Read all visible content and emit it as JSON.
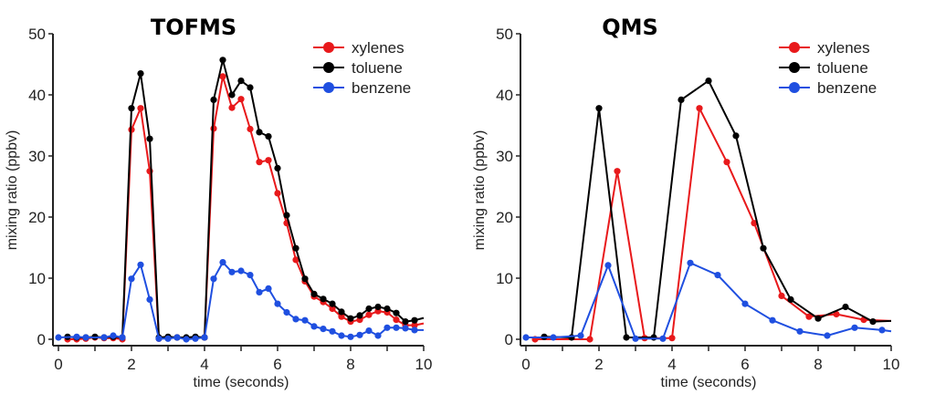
{
  "chart_data": [
    {
      "type": "line",
      "title": "TOFMS",
      "xlabel": "time (seconds)",
      "ylabel": "mixing ratio (ppbv)",
      "xlim": [
        0,
        10
      ],
      "ylim": [
        0,
        50
      ],
      "xticks": [
        0,
        2,
        4,
        6,
        8,
        10
      ],
      "yticks": [
        0,
        10,
        20,
        30,
        40,
        50
      ],
      "grid": false,
      "legend_position": "top-right",
      "series": [
        {
          "name": "xylenes",
          "color": "#e8191b",
          "x": [
            0.25,
            0.5,
            0.75,
            1.0,
            1.25,
            1.5,
            1.75,
            2.0,
            2.25,
            2.5,
            2.75,
            3.0,
            3.25,
            3.5,
            3.75,
            4.0,
            4.25,
            4.5,
            4.75,
            5.0,
            5.25,
            5.5,
            5.75,
            6.0,
            6.25,
            6.5,
            6.75,
            7.0,
            7.25,
            7.5,
            7.75,
            8.0,
            8.25,
            8.5,
            8.75,
            9.0,
            9.25,
            9.5,
            9.75,
            10.0
          ],
          "y": [
            0.0,
            0.0,
            0.1,
            0.3,
            0.2,
            0.2,
            0.0,
            34.3,
            37.8,
            27.5,
            0.1,
            0.2,
            0.3,
            0.1,
            0.2,
            0.3,
            34.5,
            43.0,
            37.9,
            39.3,
            34.4,
            29.0,
            29.3,
            23.9,
            19.0,
            13.0,
            9.5,
            7.0,
            6.1,
            5.0,
            3.7,
            2.9,
            3.2,
            4.0,
            4.6,
            4.4,
            3.2,
            2.3,
            2.3,
            2.6
          ]
        },
        {
          "name": "toluene",
          "color": "#000000",
          "x": [
            0.25,
            0.5,
            0.75,
            1.0,
            1.25,
            1.5,
            1.75,
            2.0,
            2.25,
            2.5,
            2.75,
            3.0,
            3.25,
            3.5,
            3.75,
            4.0,
            4.25,
            4.5,
            4.75,
            5.0,
            5.25,
            5.5,
            5.75,
            6.0,
            6.25,
            6.5,
            6.75,
            7.0,
            7.25,
            7.5,
            7.75,
            8.0,
            8.25,
            8.5,
            8.75,
            9.0,
            9.25,
            9.5,
            9.75,
            10.0
          ],
          "y": [
            0.4,
            0.3,
            0.3,
            0.4,
            0.3,
            0.4,
            0.3,
            37.8,
            43.5,
            32.8,
            0.3,
            0.4,
            0.3,
            0.3,
            0.4,
            0.3,
            39.2,
            45.7,
            40.0,
            42.3,
            41.2,
            33.9,
            33.2,
            28.0,
            20.3,
            14.9,
            9.9,
            7.4,
            6.6,
            5.8,
            4.5,
            3.4,
            3.9,
            5.0,
            5.3,
            5.0,
            4.3,
            2.9,
            3.1,
            3.5
          ]
        },
        {
          "name": "benzene",
          "color": "#1f4fe0",
          "x": [
            0.0,
            0.5,
            0.75,
            1.25,
            1.5,
            1.75,
            2.0,
            2.25,
            2.5,
            2.75,
            3.0,
            3.25,
            3.5,
            3.75,
            4.0,
            4.25,
            4.5,
            4.75,
            5.0,
            5.25,
            5.5,
            5.75,
            6.0,
            6.25,
            6.5,
            6.75,
            7.0,
            7.25,
            7.5,
            7.75,
            8.0,
            8.25,
            8.5,
            8.75,
            9.0,
            9.25,
            9.5,
            9.75,
            10.0
          ],
          "y": [
            0.3,
            0.4,
            0.3,
            0.3,
            0.6,
            0.3,
            9.9,
            12.2,
            6.5,
            0.1,
            0.1,
            0.3,
            0.0,
            0.1,
            0.3,
            9.9,
            12.6,
            11.0,
            11.2,
            10.5,
            7.7,
            8.3,
            5.8,
            4.4,
            3.3,
            3.1,
            2.1,
            1.7,
            1.3,
            0.6,
            0.4,
            0.7,
            1.4,
            0.6,
            1.9,
            1.9,
            1.8,
            1.5,
            1.5
          ]
        }
      ]
    },
    {
      "type": "line",
      "title": "QMS",
      "xlabel": "time (seconds)",
      "ylabel": "mixing ratio (ppbv)",
      "xlim": [
        0,
        10
      ],
      "ylim": [
        0,
        50
      ],
      "xticks": [
        0,
        2,
        4,
        6,
        8,
        10
      ],
      "yticks": [
        0,
        10,
        20,
        30,
        40,
        50
      ],
      "grid": false,
      "legend_position": "top-right",
      "series": [
        {
          "name": "xylenes",
          "color": "#e8191b",
          "x": [
            0.25,
            1.75,
            2.5,
            3.25,
            4.0,
            4.75,
            5.5,
            6.25,
            7.0,
            7.75,
            8.5,
            9.25,
            10.0
          ],
          "y": [
            0.0,
            0.0,
            27.5,
            0.2,
            0.2,
            37.8,
            29.0,
            19.0,
            7.1,
            3.7,
            4.1,
            3.2,
            3.0
          ]
        },
        {
          "name": "toluene",
          "color": "#000000",
          "x": [
            0.5,
            1.25,
            2.0,
            2.75,
            3.5,
            4.25,
            5.0,
            5.75,
            6.5,
            7.25,
            8.0,
            8.75,
            9.5,
            10.0
          ],
          "y": [
            0.4,
            0.3,
            37.8,
            0.3,
            0.3,
            39.2,
            42.3,
            33.3,
            14.9,
            6.5,
            3.4,
            5.3,
            2.9,
            3.0
          ]
        },
        {
          "name": "benzene",
          "color": "#1f4fe0",
          "x": [
            0.0,
            0.75,
            1.5,
            2.25,
            3.0,
            3.75,
            4.5,
            5.25,
            6.0,
            6.75,
            7.5,
            8.25,
            9.0,
            9.75,
            10.0
          ],
          "y": [
            0.3,
            0.3,
            0.6,
            12.1,
            0.1,
            0.1,
            12.5,
            10.5,
            5.8,
            3.1,
            1.3,
            0.6,
            1.9,
            1.5,
            1.3
          ]
        }
      ]
    }
  ]
}
